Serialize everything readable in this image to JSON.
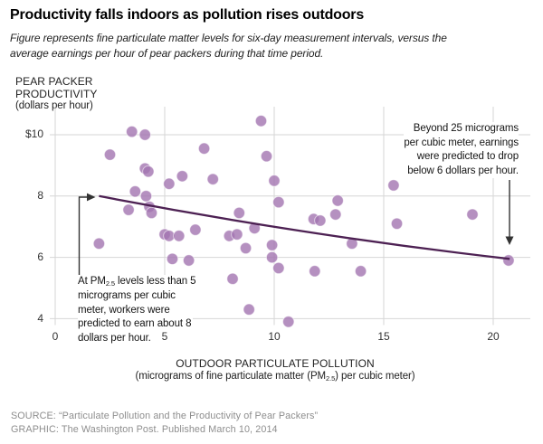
{
  "title": "Productivity falls indoors as pollution rises outdoors",
  "subtitle": {
    "line1": "Figure represents fine particulate matter levels for six-day measurement intervals, versus the",
    "line2": "average earnings per hour of pear packers during that time period."
  },
  "y_axis": {
    "title_line1": "PEAR PACKER",
    "title_line2": "PRODUCTIVITY",
    "unit": "(dollars per hour)",
    "ticks": [
      "$10",
      "8",
      "6",
      "4"
    ]
  },
  "x_axis": {
    "title": "OUTDOOR PARTICULATE POLLUTION",
    "unit_pre": "(micrograms of fine particulate matter (PM",
    "unit_sub": "2.5",
    "unit_suffix": ") per cubic meter)",
    "tick_labels": [
      "0",
      "5",
      "10",
      "15",
      "20"
    ]
  },
  "annotations": {
    "right": {
      "lines": [
        "Beyond 25 micrograms",
        "per cubic meter, earnings",
        "were predicted to drop",
        "below 6 dollars per hour."
      ]
    },
    "left": {
      "line1_pre": "At PM",
      "line1_sub": "2.5",
      "line1_post": " levels less than 5",
      "lines": [
        "micrograms per cubic",
        "meter, workers were",
        "predicted to earn about 8",
        "dollars per hour."
      ]
    }
  },
  "footer": {
    "source": "SOURCE: “Particulate Pollution and the Productivity of Pear Packers”",
    "graphic": "GRAPHIC: The Washington Post. Published March 10, 2014"
  },
  "colors": {
    "dot": "#a274b0",
    "trend": "#4d2153",
    "grid": "#d6d6d6",
    "arrow": "#333333",
    "footer_text": "#8e8e8e"
  },
  "chart_data": {
    "type": "scatter",
    "title": "Productivity falls indoors as pollution rises outdoors",
    "xlabel": "OUTDOOR PARTICULATE POLLUTION (micrograms of fine particulate matter (PM2.5) per cubic meter)",
    "ylabel": "PEAR PACKER PRODUCTIVITY (dollars per hour)",
    "xlim": [
      0,
      21.7
    ],
    "ylim": [
      3.6,
      10.9
    ],
    "x_ticks": [
      0,
      5,
      10,
      15,
      20
    ],
    "y_ticks": [
      10,
      8,
      6,
      4
    ],
    "grid": "on",
    "points": [
      [
        3.5,
        10.1
      ],
      [
        4.1,
        10.0
      ],
      [
        2.5,
        9.35
      ],
      [
        6.8,
        9.55
      ],
      [
        9.4,
        10.45
      ],
      [
        9.65,
        9.3
      ],
      [
        4.1,
        8.9
      ],
      [
        4.25,
        8.8
      ],
      [
        5.8,
        8.65
      ],
      [
        5.2,
        8.4
      ],
      [
        7.2,
        8.55
      ],
      [
        10.0,
        8.5
      ],
      [
        3.65,
        8.15
      ],
      [
        4.15,
        8.0
      ],
      [
        3.35,
        7.55
      ],
      [
        4.3,
        7.65
      ],
      [
        4.4,
        7.45
      ],
      [
        8.4,
        7.45
      ],
      [
        9.1,
        6.95
      ],
      [
        10.2,
        7.8
      ],
      [
        12.9,
        7.85
      ],
      [
        12.8,
        7.4
      ],
      [
        11.8,
        7.25
      ],
      [
        12.1,
        7.2
      ],
      [
        15.45,
        8.35
      ],
      [
        15.6,
        7.1
      ],
      [
        19.05,
        7.4
      ],
      [
        2.0,
        6.45
      ],
      [
        5.0,
        6.75
      ],
      [
        5.2,
        6.7
      ],
      [
        5.65,
        6.7
      ],
      [
        6.4,
        6.9
      ],
      [
        7.95,
        6.7
      ],
      [
        8.3,
        6.75
      ],
      [
        8.7,
        6.3
      ],
      [
        9.9,
        6.4
      ],
      [
        5.35,
        5.95
      ],
      [
        6.1,
        5.9
      ],
      [
        9.9,
        6.0
      ],
      [
        10.2,
        5.65
      ],
      [
        11.85,
        5.55
      ],
      [
        13.95,
        5.55
      ],
      [
        13.55,
        6.45
      ],
      [
        8.1,
        5.3
      ],
      [
        8.85,
        4.3
      ],
      [
        10.65,
        3.9
      ],
      [
        20.7,
        5.9
      ]
    ],
    "trend": {
      "note": "prediction line from x=2 (y=8 dollars) to x=20.75 (y=5.95 dollars), slight downward bow",
      "x": [
        2.0,
        11.5,
        20.75
      ],
      "y": [
        8.0,
        6.7,
        5.95
      ]
    }
  }
}
